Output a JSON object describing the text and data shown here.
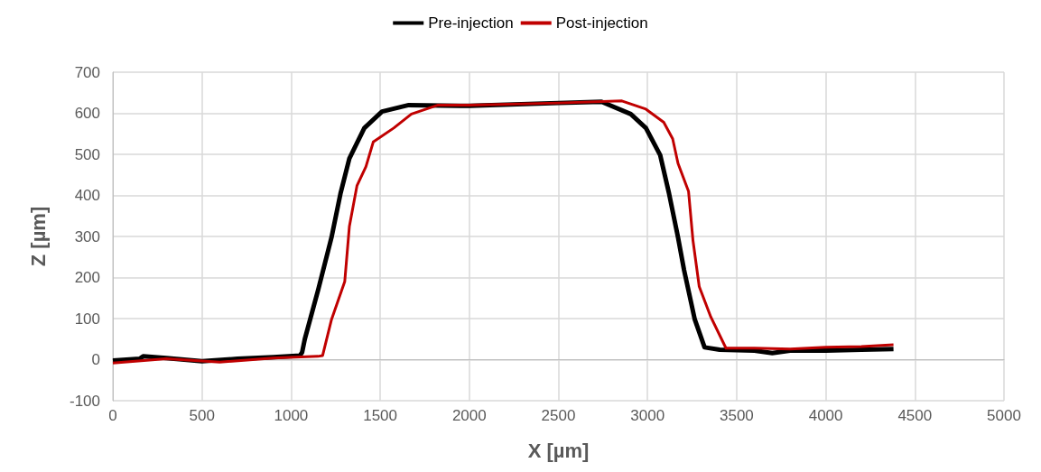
{
  "chart_data": {
    "type": "line",
    "xlabel": "X [µm]",
    "ylabel": "Z [µm]",
    "xlim": [
      0,
      5000
    ],
    "xticks": [
      0,
      500,
      1000,
      1500,
      2000,
      2500,
      3000,
      3500,
      4000,
      4500,
      5000
    ],
    "ylim": [
      -100,
      700
    ],
    "yticks": [
      -100,
      0,
      100,
      200,
      300,
      400,
      500,
      600,
      700
    ],
    "grid": true,
    "legend": "top",
    "marker": "none",
    "line_style": "solid",
    "series": [
      {
        "name": "Pre-injection",
        "color": "#000000",
        "x": [
          0,
          150,
          170,
          300,
          500,
          700,
          900,
          1050,
          1062,
          1077,
          1152,
          1227,
          1277,
          1327,
          1411,
          1510,
          1660,
          2000,
          2500,
          2742,
          2906,
          2991,
          3071,
          3121,
          3171,
          3205,
          3265,
          3320,
          3405,
          3600,
          3700,
          3800,
          4000,
          4200,
          4380
        ],
        "values": [
          -2,
          2,
          8,
          4,
          -4,
          2,
          6,
          10,
          18,
          50,
          170,
          298,
          404,
          490,
          564,
          604,
          620,
          618,
          625,
          628,
          598,
          564,
          498,
          404,
          298,
          218,
          98,
          30,
          24,
          22,
          16,
          22,
          22,
          24,
          26
        ]
      },
      {
        "name": "Post-injection",
        "color": "#c00000",
        "x": [
          0,
          300,
          600,
          900,
          1150,
          1177,
          1227,
          1301,
          1327,
          1370,
          1420,
          1461,
          1576,
          1675,
          1825,
          2000,
          2500,
          2856,
          2991,
          3091,
          3141,
          3171,
          3230,
          3255,
          3290,
          3355,
          3440,
          3600,
          3800,
          4000,
          4200,
          4380
        ],
        "values": [
          -8,
          2,
          -6,
          4,
          8,
          10,
          98,
          190,
          324,
          424,
          470,
          530,
          564,
          598,
          620,
          620,
          625,
          630,
          610,
          578,
          538,
          478,
          410,
          290,
          178,
          104,
          28,
          28,
          26,
          30,
          32,
          36
        ]
      }
    ]
  }
}
